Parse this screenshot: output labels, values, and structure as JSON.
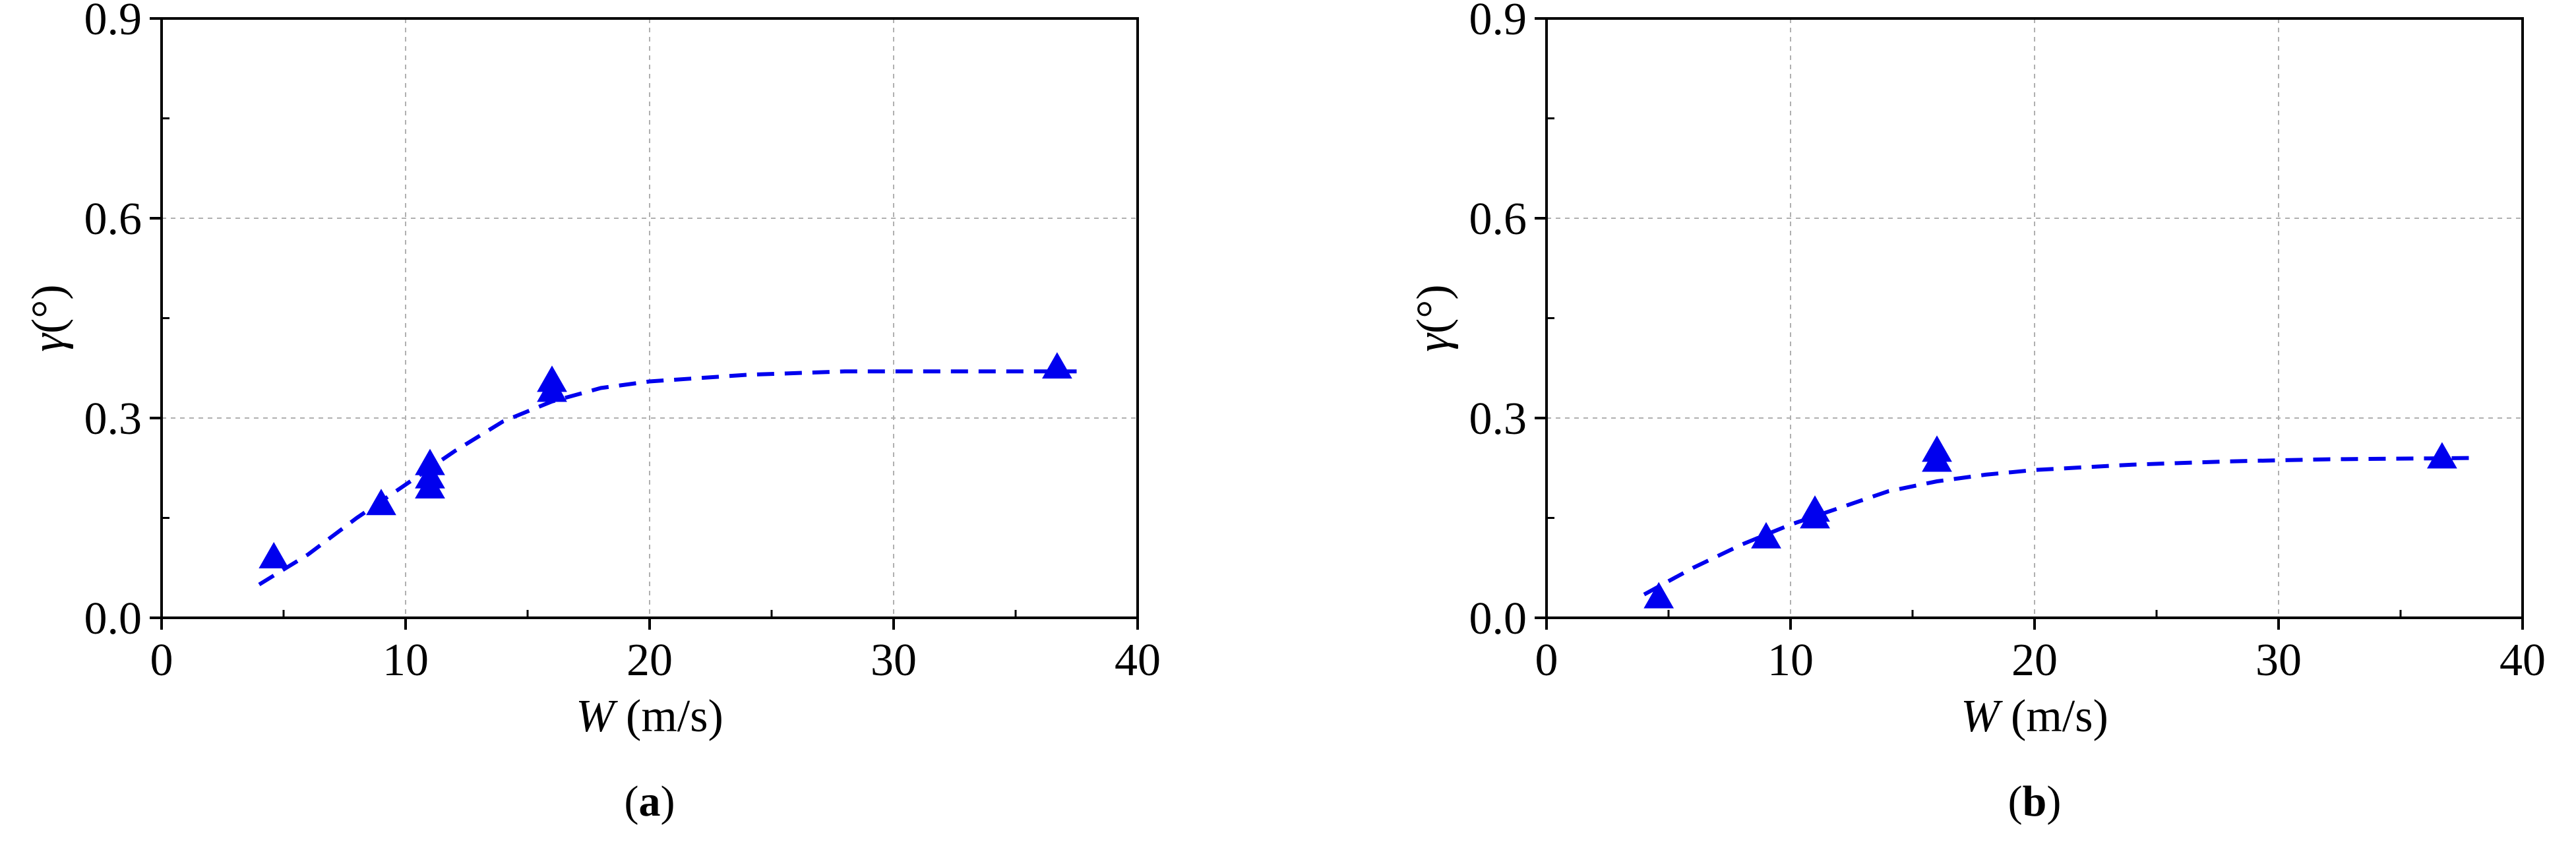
{
  "chart_data": [
    {
      "type": "scatter",
      "panel_label": "a",
      "xlabel_symbol": "W",
      "xlabel_unit": " (m/s)",
      "ylabel_symbol": "γ",
      "ylabel_unit": "(°)",
      "xlim": [
        0,
        40
      ],
      "ylim": [
        0.0,
        0.9
      ],
      "x_ticks": [
        0,
        10,
        20,
        30,
        40
      ],
      "x_tick_labels": [
        "0",
        "10",
        "20",
        "30",
        "40"
      ],
      "y_ticks": [
        0.0,
        0.3,
        0.6,
        0.9
      ],
      "y_tick_labels": [
        "0.0",
        "0.3",
        "0.6",
        "0.9"
      ],
      "grid": true,
      "colors": {
        "series": "#0000ee",
        "grid": "#b0b0b0",
        "axis": "#000000"
      },
      "series": [
        {
          "kind": "markers",
          "marker": "triangle",
          "points": [
            {
              "x": 4.6,
              "y": 0.09
            },
            {
              "x": 9.0,
              "y": 0.17
            },
            {
              "x": 11.0,
              "y": 0.195
            },
            {
              "x": 11.0,
              "y": 0.21
            },
            {
              "x": 11.0,
              "y": 0.23
            },
            {
              "x": 16.0,
              "y": 0.34
            },
            {
              "x": 16.0,
              "y": 0.355
            },
            {
              "x": 36.7,
              "y": 0.375
            }
          ]
        },
        {
          "kind": "dashed-fit",
          "points": [
            {
              "x": 4.0,
              "y": 0.05
            },
            {
              "x": 6.0,
              "y": 0.095
            },
            {
              "x": 8.0,
              "y": 0.15
            },
            {
              "x": 10.0,
              "y": 0.2
            },
            {
              "x": 12.0,
              "y": 0.25
            },
            {
              "x": 14.0,
              "y": 0.295
            },
            {
              "x": 16.0,
              "y": 0.325
            },
            {
              "x": 18.0,
              "y": 0.345
            },
            {
              "x": 20.0,
              "y": 0.355
            },
            {
              "x": 24.0,
              "y": 0.365
            },
            {
              "x": 28.0,
              "y": 0.37
            },
            {
              "x": 32.0,
              "y": 0.37
            },
            {
              "x": 37.5,
              "y": 0.37
            }
          ]
        }
      ]
    },
    {
      "type": "scatter",
      "panel_label": "b",
      "xlabel_symbol": "W",
      "xlabel_unit": " (m/s)",
      "ylabel_symbol": "γ",
      "ylabel_unit": "(°)",
      "xlim": [
        0,
        40
      ],
      "ylim": [
        0.0,
        0.9
      ],
      "x_ticks": [
        0,
        10,
        20,
        30,
        40
      ],
      "x_tick_labels": [
        "0",
        "10",
        "20",
        "30",
        "40"
      ],
      "y_ticks": [
        0.0,
        0.3,
        0.6,
        0.9
      ],
      "y_tick_labels": [
        "0.0",
        "0.3",
        "0.6",
        "0.9"
      ],
      "grid": true,
      "colors": {
        "series": "#0000ee",
        "grid": "#b0b0b0",
        "axis": "#000000"
      },
      "series": [
        {
          "kind": "markers",
          "marker": "triangle",
          "points": [
            {
              "x": 4.6,
              "y": 0.03
            },
            {
              "x": 9.0,
              "y": 0.12
            },
            {
              "x": 11.0,
              "y": 0.15
            },
            {
              "x": 11.0,
              "y": 0.16
            },
            {
              "x": 16.0,
              "y": 0.235
            },
            {
              "x": 16.0,
              "y": 0.25
            },
            {
              "x": 36.7,
              "y": 0.24
            }
          ]
        },
        {
          "kind": "dashed-fit",
          "points": [
            {
              "x": 4.0,
              "y": 0.035
            },
            {
              "x": 6.0,
              "y": 0.075
            },
            {
              "x": 8.0,
              "y": 0.11
            },
            {
              "x": 10.0,
              "y": 0.14
            },
            {
              "x": 12.0,
              "y": 0.165
            },
            {
              "x": 14.0,
              "y": 0.19
            },
            {
              "x": 16.0,
              "y": 0.205
            },
            {
              "x": 18.0,
              "y": 0.215
            },
            {
              "x": 20.0,
              "y": 0.222
            },
            {
              "x": 24.0,
              "y": 0.23
            },
            {
              "x": 28.0,
              "y": 0.235
            },
            {
              "x": 32.0,
              "y": 0.238
            },
            {
              "x": 38.0,
              "y": 0.24
            }
          ]
        }
      ]
    }
  ]
}
